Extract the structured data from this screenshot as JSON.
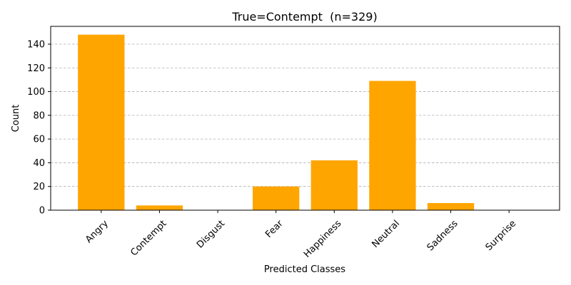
{
  "chart_data": {
    "type": "bar",
    "title": "True=Contempt  (n=329)",
    "xlabel": "Predicted Classes",
    "ylabel": "Count",
    "categories": [
      "Angry",
      "Contempt",
      "Disgust",
      "Fear",
      "Happiness",
      "Neutral",
      "Sadness",
      "Surprise"
    ],
    "values": [
      148,
      4,
      0,
      20,
      42,
      109,
      6,
      0
    ],
    "ylim": [
      0,
      155
    ],
    "yticks": [
      0,
      20,
      40,
      60,
      80,
      100,
      120,
      140
    ],
    "grid": "y-dashed",
    "bar_color": "#FFA500",
    "grid_color": "#b0b0b0"
  }
}
